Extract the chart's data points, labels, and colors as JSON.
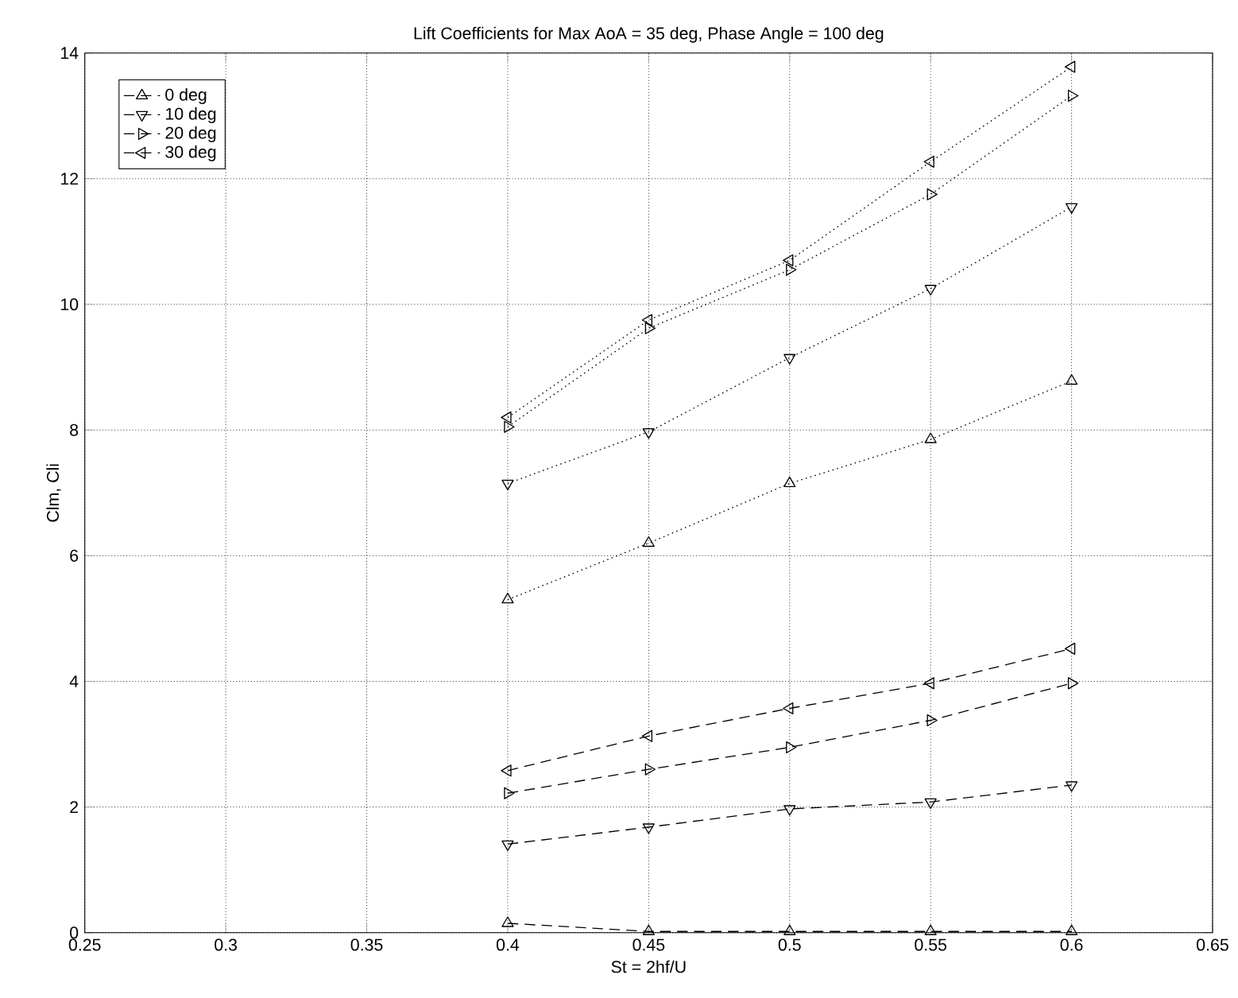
{
  "chart_data": {
    "type": "line",
    "title": "Lift Coefficients for Max AoA = 35 deg, Phase Angle = 100 deg",
    "xlabel": "St = 2hf/U",
    "ylabel": "Clm, Cli",
    "x": [
      0.4,
      0.45,
      0.5,
      0.55,
      0.6
    ],
    "series": [
      {
        "name": "0 deg",
        "color": "#000000",
        "marker": "triangle",
        "line_style": "dashed",
        "values": [
          0.15,
          0.02,
          0.02,
          0.02,
          0.02
        ]
      },
      {
        "name": "10 deg",
        "color": "#000000",
        "marker": "triangle-down",
        "line_style": "dashed",
        "values": [
          1.41,
          1.68,
          1.97,
          2.08,
          2.35
        ]
      },
      {
        "name": "20 deg",
        "color": "#000000",
        "marker": "triangle-right",
        "line_style": "dashed",
        "values": [
          2.22,
          2.6,
          2.95,
          3.38,
          3.97
        ]
      },
      {
        "name": "30 deg",
        "color": "#000000",
        "marker": "triangle-left",
        "line_style": "dashed",
        "values": [
          2.58,
          3.13,
          3.57,
          3.97,
          4.52
        ]
      },
      {
        "color": "#000000",
        "marker": "triangle",
        "line_style": "dotted",
        "values": [
          5.3,
          6.2,
          7.15,
          7.85,
          8.78
        ]
      },
      {
        "color": "#000000",
        "marker": "triangle-down",
        "line_style": "dotted",
        "values": [
          7.15,
          7.97,
          9.15,
          10.25,
          11.55
        ]
      },
      {
        "color": "#000000",
        "marker": "triangle-right",
        "line_style": "dotted",
        "values": [
          8.05,
          9.62,
          10.55,
          11.75,
          13.32
        ]
      },
      {
        "color": "#000000",
        "marker": "triangle-left",
        "line_style": "dotted",
        "values": [
          8.2,
          9.75,
          10.7,
          12.27,
          13.78
        ]
      }
    ],
    "xlim": [
      0.25,
      0.65
    ],
    "xticks": [
      0.25,
      0.3,
      0.35,
      0.4,
      0.45,
      0.5,
      0.55,
      0.6,
      0.65
    ],
    "ylim": [
      0,
      14
    ],
    "yticks": [
      0,
      2,
      4,
      6,
      8,
      10,
      12,
      14
    ],
    "grid": true,
    "legend": "top left"
  }
}
